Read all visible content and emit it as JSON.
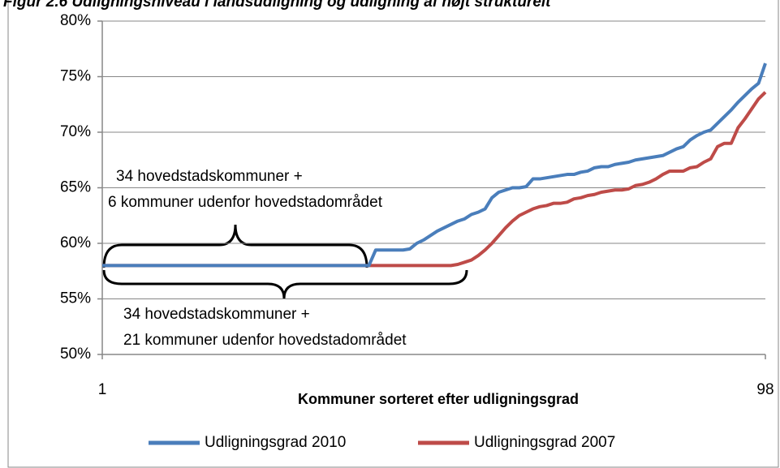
{
  "chart_data": {
    "type": "line",
    "title": "Figur 2.6 Udligningsniveau i landsudligning og udligning af højt strukturelt",
    "x_label": "Kommuner sorteret efter udligningsgrad",
    "x": [
      1,
      2,
      3,
      4,
      5,
      6,
      7,
      8,
      9,
      10,
      11,
      12,
      13,
      14,
      15,
      16,
      17,
      18,
      19,
      20,
      21,
      22,
      23,
      24,
      25,
      26,
      27,
      28,
      29,
      30,
      31,
      32,
      33,
      34,
      35,
      36,
      37,
      38,
      39,
      40,
      41,
      42,
      43,
      44,
      45,
      46,
      47,
      48,
      49,
      50,
      51,
      52,
      53,
      54,
      55,
      56,
      57,
      58,
      59,
      60,
      61,
      62,
      63,
      64,
      65,
      66,
      67,
      68,
      69,
      70,
      71,
      72,
      73,
      74,
      75,
      76,
      77,
      78,
      79,
      80,
      81,
      82,
      83,
      84,
      85,
      86,
      87,
      88,
      89,
      90,
      91,
      92,
      93,
      94,
      95,
      96,
      97,
      98
    ],
    "xlim": [
      1,
      98
    ],
    "xticks": [
      1,
      98
    ],
    "ylim": [
      50,
      80
    ],
    "yticks": [
      {
        "value": 50,
        "label": "50%"
      },
      {
        "value": 55,
        "label": "55%"
      },
      {
        "value": 60,
        "label": "60%"
      },
      {
        "value": 65,
        "label": "65%"
      },
      {
        "value": 70,
        "label": "70%"
      },
      {
        "value": 75,
        "label": "75%"
      },
      {
        "value": 80,
        "label": "80%"
      }
    ],
    "grid": true,
    "legend": "bottom",
    "series": [
      {
        "name": "Udligningsgrad 2010",
        "color": "#4a7ebb",
        "values": [
          58,
          58,
          58,
          58,
          58,
          58,
          58,
          58,
          58,
          58,
          58,
          58,
          58,
          58,
          58,
          58,
          58,
          58,
          58,
          58,
          58,
          58,
          58,
          58,
          58,
          58,
          58,
          58,
          58,
          58,
          58,
          58,
          58,
          58,
          58,
          58,
          58,
          58,
          58,
          58,
          59.4,
          59.4,
          59.4,
          59.4,
          59.4,
          59.5,
          60.0,
          60.3,
          60.7,
          61.1,
          61.4,
          61.7,
          62.0,
          62.2,
          62.6,
          62.8,
          63.1,
          64.1,
          64.6,
          64.8,
          65.0,
          65.0,
          65.1,
          65.8,
          65.8,
          65.9,
          66.0,
          66.1,
          66.2,
          66.2,
          66.4,
          66.5,
          66.8,
          66.9,
          66.9,
          67.1,
          67.2,
          67.3,
          67.5,
          67.6,
          67.7,
          67.8,
          67.9,
          68.2,
          68.5,
          68.7,
          69.3,
          69.7,
          70.0,
          70.2,
          70.8,
          71.4,
          72.0,
          72.7,
          73.3,
          73.9,
          74.4,
          76.2
        ]
      },
      {
        "name": "Udligningsgrad 2007",
        "color": "#be4b48",
        "values": [
          58,
          58,
          58,
          58,
          58,
          58,
          58,
          58,
          58,
          58,
          58,
          58,
          58,
          58,
          58,
          58,
          58,
          58,
          58,
          58,
          58,
          58,
          58,
          58,
          58,
          58,
          58,
          58,
          58,
          58,
          58,
          58,
          58,
          58,
          58,
          58,
          58,
          58,
          58,
          58,
          58,
          58,
          58,
          58,
          58,
          58,
          58,
          58,
          58,
          58,
          58,
          58,
          58.1,
          58.3,
          58.5,
          58.9,
          59.4,
          60.0,
          60.7,
          61.4,
          62.0,
          62.5,
          62.8,
          63.1,
          63.3,
          63.4,
          63.6,
          63.6,
          63.7,
          64.0,
          64.1,
          64.3,
          64.4,
          64.6,
          64.7,
          64.8,
          64.8,
          64.9,
          65.2,
          65.3,
          65.5,
          65.8,
          66.2,
          66.5,
          66.5,
          66.5,
          66.8,
          66.9,
          67.3,
          67.6,
          68.7,
          69.0,
          69.0,
          70.4,
          71.2,
          72.1,
          73.0,
          73.6
        ]
      }
    ],
    "annotations": [
      {
        "lines": [
          "34 hovedstadskommuner +",
          "6 kommuner udenfor hovedstadområdet"
        ]
      },
      {
        "lines": [
          "34 hovedstadskommuner +",
          "21 kommuner udenfor hovedstadområdet"
        ]
      }
    ]
  }
}
